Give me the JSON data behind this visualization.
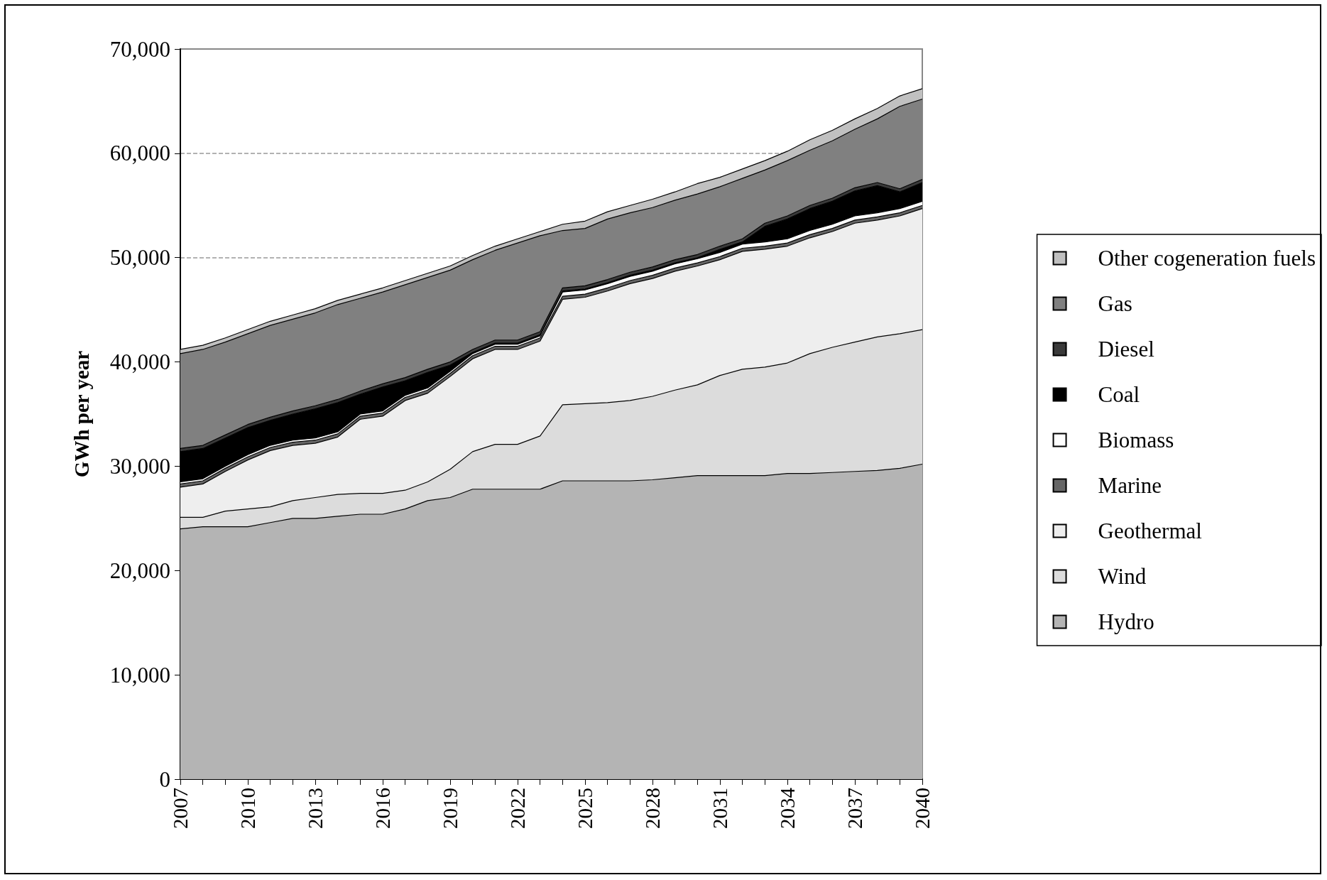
{
  "chart_data": {
    "type": "area",
    "stacked": true,
    "ylabel": "GWh per year",
    "categories": [
      "2007",
      null,
      null,
      "2010",
      null,
      null,
      "2013",
      null,
      null,
      "2016",
      null,
      null,
      "2019",
      null,
      null,
      "2022",
      null,
      null,
      "2025",
      null,
      null,
      "2028",
      null,
      null,
      "2031",
      null,
      null,
      "2034",
      null,
      null,
      "2037",
      null,
      null,
      "2040"
    ],
    "series": [
      {
        "name": "Hydro",
        "color": "#b4b4b4",
        "values": [
          24000,
          24200,
          24200,
          24200,
          24600,
          25000,
          25000,
          25200,
          25400,
          25400,
          25900,
          26700,
          27000,
          27800,
          27800,
          27800,
          27800,
          28600,
          28600,
          28600,
          28600,
          28700,
          28900,
          29100,
          29100,
          29100,
          29100,
          29300,
          29300,
          29400,
          29500,
          29600,
          29800,
          30200
        ]
      },
      {
        "name": "Wind",
        "color": "#dcdcdc",
        "values": [
          1100,
          900,
          1500,
          1700,
          1500,
          1700,
          2000,
          2100,
          2000,
          2000,
          1800,
          1800,
          2700,
          3600,
          4300,
          4300,
          5100,
          7300,
          7400,
          7500,
          7700,
          8000,
          8400,
          8700,
          9600,
          10200,
          10400,
          10600,
          11500,
          12000,
          12400,
          12800,
          12900,
          12900
        ]
      },
      {
        "name": "Geothermal",
        "color": "#eeeeee",
        "values": [
          2900,
          3200,
          3800,
          4700,
          5400,
          5300,
          5200,
          5500,
          7100,
          7400,
          8600,
          8500,
          8900,
          8900,
          9100,
          9100,
          9100,
          10100,
          10200,
          10700,
          11200,
          11300,
          11400,
          11400,
          11100,
          11300,
          11300,
          11200,
          11100,
          11100,
          11400,
          11200,
          11300,
          11600
        ]
      },
      {
        "name": "Marine",
        "color": "#666666",
        "values": [
          300,
          300,
          300,
          300,
          300,
          300,
          300,
          300,
          300,
          300,
          300,
          300,
          300,
          300,
          300,
          300,
          300,
          300,
          300,
          300,
          300,
          300,
          300,
          300,
          300,
          300,
          300,
          300,
          300,
          300,
          300,
          300,
          300,
          300
        ]
      },
      {
        "name": "Biomass",
        "color": "#ffffff",
        "values": [
          200,
          200,
          200,
          200,
          200,
          200,
          200,
          200,
          200,
          200,
          200,
          200,
          200,
          200,
          200,
          200,
          200,
          400,
          400,
          400,
          400,
          400,
          400,
          400,
          400,
          400,
          400,
          400,
          400,
          400,
          400,
          400,
          400,
          400
        ]
      },
      {
        "name": "Coal",
        "color": "#000000",
        "values": [
          2900,
          2900,
          2700,
          2600,
          2400,
          2500,
          2800,
          2800,
          1900,
          2300,
          1400,
          1500,
          600,
          100,
          100,
          100,
          100,
          100,
          100,
          100,
          100,
          100,
          100,
          100,
          300,
          200,
          1500,
          1900,
          2100,
          2200,
          2400,
          2600,
          1600,
          1800
        ]
      },
      {
        "name": "Diesel",
        "color": "#3a3a3a",
        "values": [
          300,
          300,
          300,
          300,
          300,
          300,
          300,
          300,
          300,
          300,
          300,
          300,
          300,
          300,
          300,
          300,
          300,
          300,
          300,
          300,
          300,
          300,
          300,
          300,
          300,
          300,
          300,
          300,
          300,
          300,
          300,
          300,
          300,
          300
        ]
      },
      {
        "name": "Gas",
        "color": "#808080",
        "values": [
          9100,
          9200,
          8900,
          8700,
          8800,
          8800,
          8900,
          9100,
          8900,
          8800,
          8900,
          8800,
          8800,
          8600,
          8600,
          9300,
          9200,
          5500,
          5500,
          5800,
          5700,
          5700,
          5700,
          5800,
          5700,
          5800,
          5100,
          5300,
          5300,
          5500,
          5600,
          6100,
          7900,
          7700
        ]
      },
      {
        "name": "Other cogeneration fuels",
        "color": "#c0c0c0",
        "values": [
          400,
          400,
          400,
          400,
          400,
          400,
          400,
          400,
          400,
          400,
          400,
          400,
          400,
          400,
          400,
          400,
          400,
          600,
          700,
          700,
          700,
          800,
          800,
          1000,
          900,
          900,
          900,
          900,
          1000,
          1000,
          1000,
          1000,
          1000,
          1000
        ]
      }
    ],
    "ylim": [
      0,
      70000
    ],
    "yticks": [
      0,
      {
        "value": 10000,
        "label": "10,000"
      },
      {
        "value": 20000,
        "label": "20,000"
      },
      {
        "value": 30000,
        "label": "30,000"
      },
      {
        "value": 40000,
        "label": "40,000"
      },
      {
        "value": 50000,
        "label": "50,000"
      },
      {
        "value": 60000,
        "label": "60,000"
      },
      {
        "value": 70000,
        "label": "70,000"
      }
    ],
    "grid": "y",
    "legend": "right",
    "marker": "none"
  }
}
